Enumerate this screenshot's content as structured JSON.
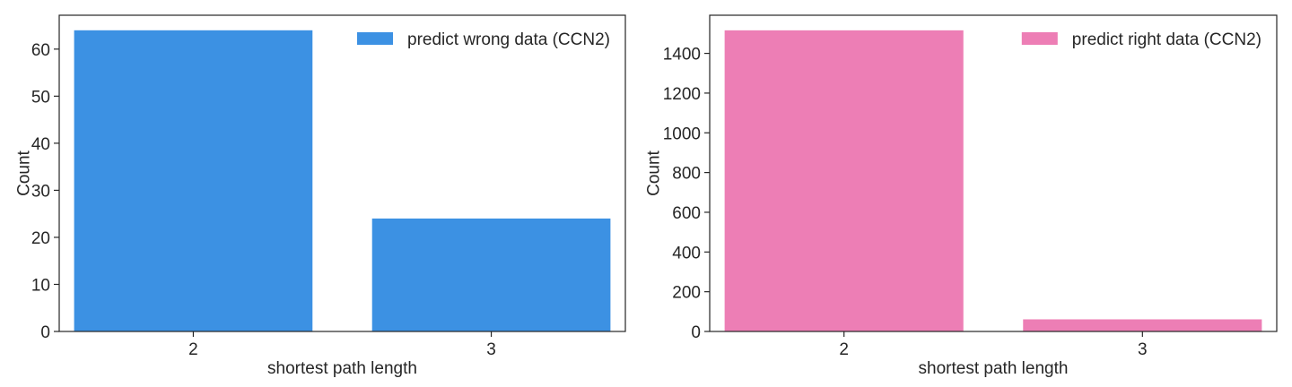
{
  "chart_data": [
    {
      "type": "bar",
      "categories": [
        "2",
        "3"
      ],
      "series": [
        {
          "name": "predict wrong data (CCN2)",
          "values": [
            64,
            24
          ],
          "color": "#3c91e3"
        }
      ],
      "xlabel": "shortest path length",
      "ylabel": "Count",
      "ylim": [
        0,
        67.2
      ],
      "yticks": [
        0,
        10,
        20,
        30,
        40,
        50,
        60
      ],
      "legend": "top-right",
      "grid": false
    },
    {
      "type": "bar",
      "categories": [
        "2",
        "3"
      ],
      "series": [
        {
          "name": "predict right data (CCN2)",
          "values": [
            1516,
            61
          ],
          "color": "#ed7eb5"
        }
      ],
      "xlabel": "shortest path length",
      "ylabel": "Count",
      "ylim": [
        0,
        1592
      ],
      "yticks": [
        0,
        200,
        400,
        600,
        800,
        1000,
        1200,
        1400
      ],
      "legend": "top-right",
      "grid": false
    }
  ]
}
